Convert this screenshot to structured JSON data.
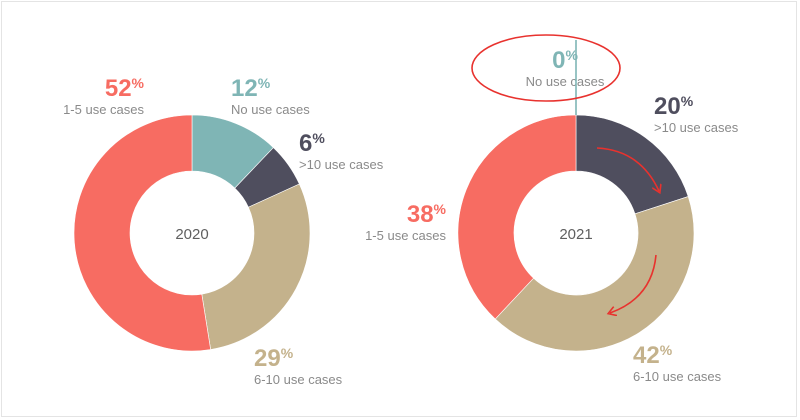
{
  "chart_data": [
    {
      "type": "pie",
      "center_label": "2020",
      "categories": [
        "No use cases",
        ">10 use cases",
        "6-10 use cases",
        "1-5 use cases"
      ],
      "values": [
        12,
        6,
        29,
        52
      ],
      "labels": [
        {
          "pct": "12",
          "text": "No use cases"
        },
        {
          "pct": "6",
          "text": ">10 use cases"
        },
        {
          "pct": "29",
          "text": "6-10 use cases"
        },
        {
          "pct": "52",
          "text": "1-5 use cases"
        }
      ]
    },
    {
      "type": "pie",
      "center_label": "2021",
      "categories": [
        "No use cases",
        ">10 use cases",
        "6-10 use cases",
        "1-5 use cases"
      ],
      "values": [
        0,
        20,
        42,
        38
      ],
      "labels": [
        {
          "pct": "0",
          "text": "No use cases"
        },
        {
          "pct": "20",
          "text": ">10 use cases"
        },
        {
          "pct": "42",
          "text": "6-10 use cases"
        },
        {
          "pct": "38",
          "text": "1-5 use cases"
        }
      ]
    }
  ],
  "percent_sign": "%",
  "colors": {
    "No use cases": "#7fb5b5",
    ">10 use cases": "#4f4e5e",
    "6-10 use cases": "#c4b28c",
    "1-5 use cases": "#f76c62",
    "text_gray": "#8a8a8a",
    "highlight": "#e8322e"
  }
}
